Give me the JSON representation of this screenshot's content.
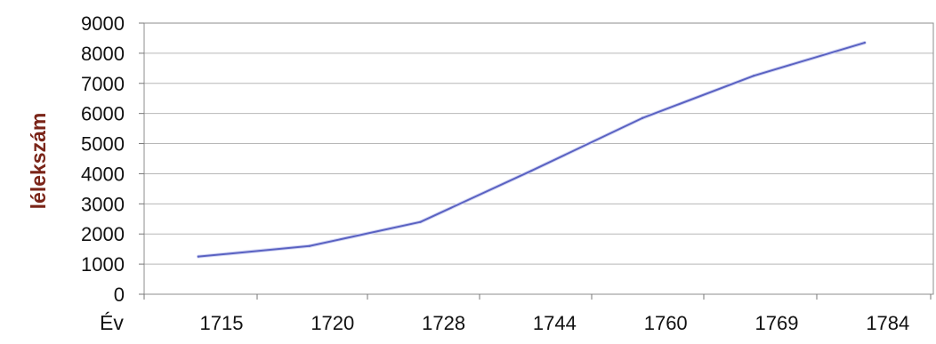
{
  "chart_data": {
    "type": "line",
    "title": "",
    "xlabel": "Év",
    "ylabel": "lélekszám",
    "categories": [
      "1715",
      "1720",
      "1728",
      "1744",
      "1760",
      "1769",
      "1784"
    ],
    "series": [
      {
        "values": [
          1250,
          1600,
          2400,
          4100,
          5850,
          7250,
          8350
        ],
        "color": "#5a62c2"
      }
    ],
    "ylim": [
      0,
      9000
    ],
    "yticks": [
      0,
      1000,
      2000,
      3000,
      4000,
      5000,
      6000,
      7000,
      8000,
      9000
    ],
    "grid": true,
    "legend": "none"
  }
}
